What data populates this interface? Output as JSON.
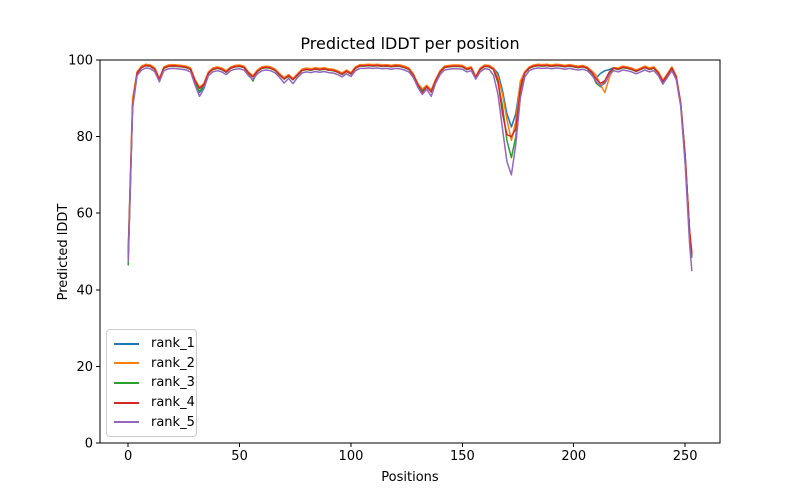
{
  "figure": {
    "background": "#ffffff",
    "text_color": "#000000",
    "spine_color": "#000000"
  },
  "chart_data": {
    "type": "line",
    "title": "Predicted lDDT per position",
    "xlabel": "Positions",
    "ylabel": "Predicted lDDT",
    "xlim": [
      -12.65,
      265.65
    ],
    "ylim": [
      0,
      100
    ],
    "xticks": [
      0,
      50,
      100,
      150,
      200,
      250
    ],
    "yticks": [
      0,
      20,
      40,
      60,
      80,
      100
    ],
    "grid": false,
    "legend_position": "lower left",
    "x": [
      0,
      2,
      4,
      6,
      8,
      10,
      12,
      14,
      16,
      18,
      20,
      22,
      24,
      26,
      28,
      30,
      32,
      34,
      36,
      38,
      40,
      42,
      44,
      46,
      48,
      50,
      52,
      54,
      56,
      58,
      60,
      62,
      64,
      66,
      68,
      70,
      72,
      74,
      76,
      78,
      80,
      82,
      84,
      86,
      88,
      90,
      92,
      94,
      96,
      98,
      100,
      102,
      104,
      106,
      108,
      110,
      112,
      114,
      116,
      118,
      120,
      122,
      124,
      126,
      128,
      130,
      132,
      134,
      136,
      138,
      140,
      142,
      144,
      146,
      148,
      150,
      152,
      154,
      156,
      158,
      160,
      162,
      164,
      166,
      168,
      170,
      172,
      174,
      176,
      178,
      180,
      182,
      184,
      186,
      188,
      190,
      192,
      194,
      196,
      198,
      200,
      202,
      204,
      206,
      208,
      210,
      212,
      214,
      216,
      218,
      220,
      222,
      224,
      226,
      228,
      230,
      232,
      234,
      236,
      238,
      240,
      242,
      244,
      246,
      248,
      250,
      252,
      253
    ],
    "series": [
      {
        "name": "rank_1",
        "color": "#1f77b4",
        "values": [
          48.5,
          88.2,
          96.7,
          98.2,
          98.7,
          98.5,
          97.7,
          94.6,
          98.0,
          98.5,
          98.6,
          98.5,
          98.4,
          98.2,
          97.7,
          94.0,
          91.5,
          93.0,
          96.7,
          97.7,
          98.0,
          97.7,
          97.0,
          98.0,
          98.4,
          98.5,
          98.2,
          96.7,
          95.7,
          97.2,
          98.0,
          98.2,
          98.0,
          97.4,
          96.2,
          95.2,
          96.0,
          95.0,
          96.2,
          97.4,
          97.7,
          97.5,
          97.8,
          97.6,
          97.8,
          97.5,
          97.4,
          97.0,
          96.4,
          97.2,
          96.5,
          98.0,
          98.6,
          98.6,
          98.7,
          98.6,
          98.7,
          98.5,
          98.6,
          98.4,
          98.6,
          98.5,
          98.2,
          97.7,
          96.2,
          93.7,
          92.2,
          93.2,
          92.0,
          94.7,
          97.0,
          98.2,
          98.4,
          98.5,
          98.5,
          98.4,
          97.7,
          98.0,
          95.5,
          97.7,
          98.5,
          98.4,
          97.8,
          96.5,
          92.0,
          86.0,
          82.5,
          86.0,
          94.0,
          96.7,
          98.0,
          98.5,
          98.7,
          98.6,
          98.7,
          98.5,
          98.7,
          98.6,
          98.4,
          98.6,
          98.4,
          98.2,
          98.4,
          98.0,
          96.0,
          95.3,
          96.5,
          97.2,
          97.5,
          98.0,
          97.7,
          98.2,
          98.0,
          97.7,
          97.2,
          97.7,
          98.2,
          97.7,
          98.0,
          96.7,
          94.5,
          96.2,
          98.0,
          95.7,
          88.7,
          75.2,
          55.2,
          49.0
        ]
      },
      {
        "name": "rank_2",
        "color": "#ff7f0e",
        "values": [
          50.0,
          90.0,
          96.9,
          98.4,
          98.9,
          98.7,
          97.9,
          95.2,
          98.2,
          98.7,
          98.8,
          98.7,
          98.6,
          98.4,
          97.9,
          94.9,
          92.9,
          93.9,
          96.9,
          97.9,
          98.2,
          97.9,
          97.2,
          98.2,
          98.6,
          98.7,
          98.4,
          96.9,
          95.9,
          97.4,
          98.2,
          98.4,
          98.2,
          97.6,
          96.4,
          95.4,
          96.2,
          95.2,
          96.4,
          97.6,
          97.9,
          97.7,
          98.0,
          97.8,
          98.0,
          97.7,
          97.6,
          97.2,
          96.6,
          97.4,
          96.7,
          98.2,
          98.8,
          98.8,
          98.9,
          98.8,
          98.9,
          98.7,
          98.8,
          98.6,
          98.8,
          98.7,
          98.4,
          97.9,
          96.4,
          93.9,
          92.4,
          93.4,
          92.2,
          94.9,
          97.2,
          98.4,
          98.6,
          98.7,
          98.7,
          98.6,
          97.9,
          98.2,
          95.7,
          97.9,
          98.7,
          98.6,
          97.9,
          95.5,
          91.0,
          84.5,
          79.0,
          84.0,
          94.5,
          96.9,
          98.2,
          98.7,
          98.9,
          98.8,
          98.9,
          98.7,
          98.9,
          98.8,
          98.6,
          98.8,
          98.6,
          98.4,
          98.6,
          98.2,
          97.2,
          96.0,
          93.5,
          91.5,
          95.5,
          98.0,
          97.9,
          98.4,
          98.2,
          97.9,
          97.4,
          97.9,
          98.4,
          97.9,
          98.2,
          96.9,
          94.7,
          96.4,
          98.2,
          95.9,
          88.9,
          75.4,
          55.4,
          50.0
        ]
      },
      {
        "name": "rank_3",
        "color": "#2ca02c",
        "values": [
          46.5,
          88.0,
          96.5,
          98.0,
          98.5,
          98.3,
          97.5,
          94.8,
          97.8,
          98.3,
          98.4,
          98.3,
          98.2,
          98.0,
          97.5,
          94.0,
          91.8,
          93.5,
          96.5,
          97.5,
          97.8,
          97.5,
          96.8,
          97.8,
          98.2,
          98.3,
          98.0,
          96.5,
          94.5,
          97.0,
          97.8,
          98.0,
          97.8,
          97.2,
          96.0,
          95.0,
          95.8,
          94.8,
          96.0,
          97.2,
          97.5,
          97.3,
          97.6,
          97.4,
          97.6,
          97.3,
          97.2,
          96.8,
          96.2,
          97.0,
          96.3,
          97.8,
          98.4,
          98.4,
          98.5,
          98.4,
          98.5,
          98.3,
          98.4,
          98.2,
          98.4,
          98.3,
          98.0,
          97.5,
          96.0,
          93.5,
          92.0,
          93.0,
          91.8,
          94.5,
          96.8,
          98.0,
          98.2,
          98.3,
          98.3,
          98.2,
          97.5,
          97.8,
          95.3,
          97.5,
          98.3,
          98.2,
          97.5,
          94.0,
          88.0,
          79.0,
          74.5,
          80.0,
          91.5,
          96.5,
          97.8,
          98.3,
          98.5,
          98.4,
          98.5,
          98.3,
          98.5,
          98.4,
          98.2,
          98.4,
          98.2,
          98.0,
          98.2,
          97.8,
          96.8,
          94.0,
          93.0,
          94.5,
          96.5,
          97.8,
          97.5,
          98.0,
          97.8,
          97.5,
          97.0,
          97.5,
          98.0,
          97.5,
          97.8,
          96.5,
          93.8,
          96.0,
          97.8,
          95.5,
          88.5,
          75.0,
          55.0,
          48.5
        ]
      },
      {
        "name": "rank_4",
        "color": "#d62728",
        "values": [
          49.5,
          88.1,
          96.6,
          98.1,
          98.6,
          98.4,
          97.6,
          94.9,
          97.9,
          98.4,
          98.5,
          98.4,
          98.3,
          98.1,
          97.6,
          94.6,
          92.6,
          93.6,
          96.6,
          97.6,
          97.9,
          97.6,
          96.9,
          97.9,
          98.3,
          98.4,
          98.1,
          96.6,
          95.6,
          97.1,
          97.9,
          98.1,
          97.9,
          97.3,
          96.1,
          95.1,
          95.9,
          94.9,
          96.1,
          97.3,
          97.6,
          97.4,
          97.7,
          97.5,
          97.7,
          97.4,
          97.3,
          96.9,
          96.3,
          97.1,
          96.4,
          97.9,
          98.5,
          98.5,
          98.6,
          98.5,
          98.6,
          98.4,
          98.5,
          98.3,
          98.5,
          98.4,
          98.1,
          97.6,
          96.1,
          93.6,
          91.5,
          93.1,
          91.6,
          94.6,
          96.9,
          98.1,
          98.3,
          98.4,
          98.4,
          98.3,
          97.6,
          97.9,
          95.4,
          97.6,
          98.4,
          98.3,
          97.6,
          94.5,
          86.0,
          80.5,
          80.0,
          82.0,
          92.5,
          96.6,
          97.9,
          98.4,
          98.6,
          98.5,
          98.6,
          98.4,
          98.6,
          98.5,
          98.3,
          98.5,
          98.3,
          98.1,
          98.3,
          97.9,
          96.9,
          95.1,
          93.9,
          94.6,
          96.9,
          97.9,
          97.6,
          98.1,
          97.9,
          97.6,
          97.1,
          97.6,
          98.1,
          97.6,
          97.9,
          96.6,
          94.4,
          96.1,
          97.9,
          95.6,
          88.6,
          75.1,
          55.1,
          49.5
        ]
      },
      {
        "name": "rank_5",
        "color": "#9467bd",
        "values": [
          47.4,
          87.4,
          95.9,
          97.4,
          97.9,
          97.7,
          96.9,
          94.3,
          97.2,
          97.7,
          97.8,
          97.7,
          97.6,
          97.4,
          96.9,
          93.5,
          90.5,
          92.5,
          95.9,
          96.9,
          97.2,
          96.9,
          96.2,
          97.2,
          97.6,
          97.7,
          97.4,
          95.9,
          94.9,
          96.4,
          97.2,
          97.4,
          97.2,
          96.6,
          95.4,
          94.0,
          95.2,
          93.8,
          95.4,
          96.6,
          96.9,
          96.7,
          97.0,
          96.8,
          97.0,
          96.7,
          96.6,
          96.2,
          95.6,
          96.4,
          95.7,
          97.2,
          97.8,
          97.8,
          97.9,
          97.8,
          97.9,
          97.7,
          97.8,
          97.6,
          97.8,
          97.7,
          97.4,
          96.9,
          95.4,
          92.9,
          91.0,
          92.4,
          90.5,
          93.9,
          96.2,
          97.4,
          97.6,
          97.7,
          97.7,
          97.6,
          96.9,
          97.2,
          95.0,
          96.9,
          97.7,
          97.6,
          96.0,
          91.0,
          82.0,
          73.5,
          70.0,
          78.0,
          90.0,
          95.5,
          97.2,
          97.7,
          97.9,
          97.8,
          97.9,
          97.7,
          97.9,
          97.8,
          97.6,
          97.8,
          97.6,
          97.4,
          97.6,
          97.2,
          96.2,
          94.4,
          93.2,
          93.9,
          96.2,
          97.2,
          96.9,
          97.4,
          97.2,
          96.9,
          96.4,
          96.9,
          97.4,
          96.9,
          97.2,
          95.9,
          93.7,
          95.4,
          97.2,
          94.9,
          87.9,
          73.0,
          52.0,
          45.0
        ]
      }
    ]
  }
}
